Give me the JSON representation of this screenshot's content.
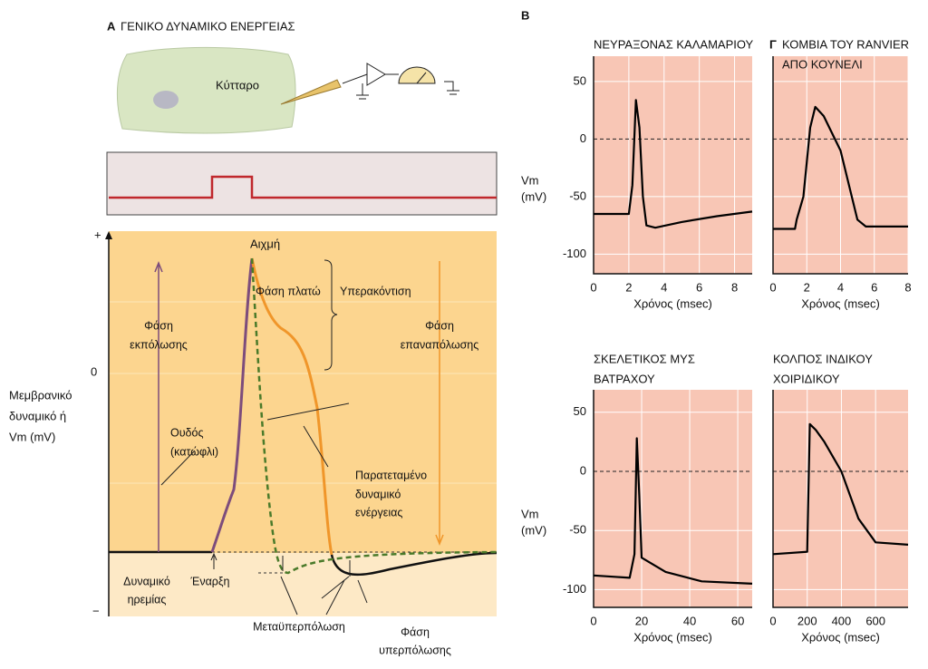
{
  "panel_a": {
    "letter": "Α",
    "title": "ΓΕΝΙΚΟ ΔΥΝΑΜΙΚΟ ΕΝΕΡΓΕΙΑΣ",
    "cell": "Κύτταρο",
    "y_label": [
      "Μεμβρανικό",
      "δυναμικό ή",
      "Vm (mV)"
    ],
    "axis_plus": "+",
    "axis_zero": "0",
    "axis_minus": "−",
    "peak": "Αιχμή",
    "plateau": "Φάση πλατώ",
    "overshoot": "Υπερακόντιση",
    "depolarization": [
      "Φάση",
      "εκπόλωσης"
    ],
    "repolarization": [
      "Φάση",
      "επαναπόλωσης"
    ],
    "threshold": [
      "Ουδός",
      "(κατώφλι)"
    ],
    "prolonged": [
      "Παρατεταμένο",
      "δυναμικό",
      "ενέργειας"
    ],
    "resting": [
      "Δυναμικό",
      "ηρεμίας"
    ],
    "onset": "Έναρξη",
    "afterhyper": "Μεταϋπερπόλωση",
    "hyper": [
      "Φάση",
      "υπερπόλωσης"
    ]
  },
  "panel_b_letter": "B",
  "chart_data": [
    {
      "type": "line",
      "title": [
        "ΝΕΥΡΑΞΟΝΑΣ ΚΑΛΑΜΑΡΙΟΥ"
      ],
      "y_label": [
        "Vm",
        "(mV)"
      ],
      "x_label": "Χρόνος (msec)",
      "x": [
        0,
        2,
        2.2,
        2.4,
        2.6,
        2.8,
        3.0,
        3.5,
        5,
        7,
        9
      ],
      "series": [
        {
          "color": "#000000",
          "values": [
            -65,
            -65,
            -40,
            34,
            10,
            -50,
            -75,
            -77,
            -72,
            -67,
            -63
          ]
        }
      ],
      "xlim": [
        0,
        9
      ],
      "xticks": [
        0,
        2,
        4,
        6,
        8
      ],
      "ylim": [
        -117,
        72
      ],
      "yticks": [
        -100,
        -50,
        0,
        50
      ],
      "show_ytick_labels": true,
      "grid": true,
      "background": "#f8c6b5"
    },
    {
      "type": "line",
      "panel_letter": "Γ",
      "title": [
        "ΚΟΜΒΙΑ ΤΟΥ RANVIER",
        "ΑΠΟ ΚΟΥΝΕΛΙ"
      ],
      "x_label": "Χρόνος (msec)",
      "x": [
        0,
        1.3,
        1.4,
        1.8,
        2.2,
        2.5,
        3,
        4,
        4.5,
        5,
        5.5,
        8
      ],
      "series": [
        {
          "color": "#000000",
          "values": [
            -78,
            -78,
            -70,
            -50,
            10,
            28,
            20,
            -10,
            -40,
            -70,
            -76,
            -76
          ]
        }
      ],
      "xlim": [
        0,
        8
      ],
      "xticks": [
        0,
        2,
        4,
        6,
        8
      ],
      "ylim": [
        -117,
        72
      ],
      "yticks": [
        -100,
        -50,
        0,
        50
      ],
      "show_ytick_labels": false,
      "grid": true,
      "background": "#f8c6b5"
    },
    {
      "type": "line",
      "title": [
        "ΣΚΕΛΕΤΙΚΟΣ ΜΥΣ",
        "ΒΑΤΡΑΧΟΥ"
      ],
      "y_label": [
        "Vm",
        "(mV)"
      ],
      "x_label": "Χρόνος (msec)",
      "x": [
        0,
        15,
        17,
        18,
        19,
        20,
        30,
        45,
        66
      ],
      "series": [
        {
          "color": "#000000",
          "values": [
            -88,
            -90,
            -70,
            28,
            -20,
            -73,
            -85,
            -93,
            -95
          ]
        }
      ],
      "xlim": [
        0,
        66
      ],
      "xticks": [
        0,
        20,
        40,
        60
      ],
      "ylim": [
        -115,
        69
      ],
      "yticks": [
        -100,
        -50,
        0,
        50
      ],
      "show_ytick_labels": true,
      "grid": true,
      "background": "#f8c6b5"
    },
    {
      "type": "line",
      "title": [
        "ΚΟΛΠΟΣ ΙΝΔΙΚΟΥ",
        "ΧΟΙΡΙΔΙΚΟΥ"
      ],
      "x_label": "Χρόνος (msec)",
      "x": [
        0,
        200,
        215,
        250,
        300,
        400,
        500,
        600,
        790
      ],
      "series": [
        {
          "color": "#000000",
          "values": [
            -70,
            -68,
            40,
            35,
            25,
            0,
            -40,
            -60,
            -62
          ]
        }
      ],
      "xlim": [
        0,
        790
      ],
      "xticks": [
        0,
        200,
        400,
        600
      ],
      "ylim": [
        -115,
        69
      ],
      "yticks": [
        -100,
        -50,
        0,
        50
      ],
      "show_ytick_labels": false,
      "grid": true,
      "background": "#f8c6b5"
    }
  ]
}
